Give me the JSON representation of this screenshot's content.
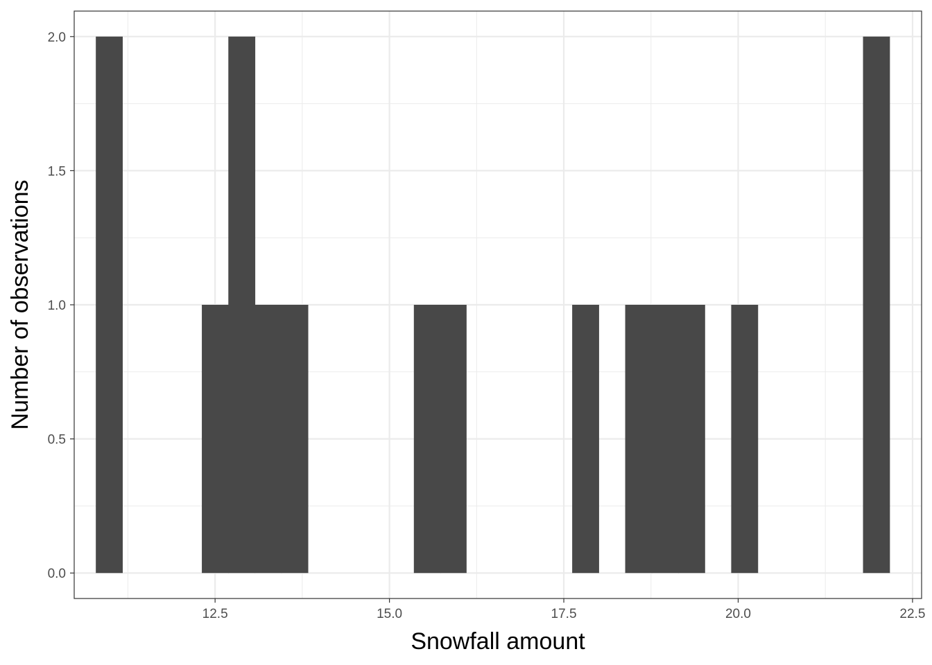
{
  "chart_data": {
    "type": "bar",
    "subtype": "histogram",
    "title": "",
    "xlabel": "Snowfall amount",
    "ylabel": "Number of observations",
    "xlim": [
      10.48,
      22.63
    ],
    "ylim": [
      -0.095,
      2.095
    ],
    "x_ticks": [
      12.5,
      15.0,
      17.5,
      20.0,
      22.5
    ],
    "x_tick_labels": [
      "12.5",
      "15.0",
      "17.5",
      "20.0",
      "22.5"
    ],
    "y_ticks": [
      0.0,
      0.5,
      1.0,
      1.5,
      2.0
    ],
    "y_tick_labels": [
      "0.0",
      "0.5",
      "1.0",
      "1.5",
      "2.0"
    ],
    "bin_width": 0.3793,
    "bars": [
      {
        "x0": 10.79,
        "x1": 11.17,
        "count": 2
      },
      {
        "x0": 12.31,
        "x1": 12.69,
        "count": 1
      },
      {
        "x0": 12.69,
        "x1": 13.07,
        "count": 2
      },
      {
        "x0": 13.07,
        "x1": 13.45,
        "count": 1
      },
      {
        "x0": 13.45,
        "x1": 13.83,
        "count": 1
      },
      {
        "x0": 15.35,
        "x1": 15.73,
        "count": 1
      },
      {
        "x0": 15.73,
        "x1": 16.1,
        "count": 1
      },
      {
        "x0": 17.62,
        "x1": 18.0,
        "count": 1
      },
      {
        "x0": 18.38,
        "x1": 18.76,
        "count": 1
      },
      {
        "x0": 18.76,
        "x1": 19.14,
        "count": 1
      },
      {
        "x0": 19.14,
        "x1": 19.52,
        "count": 1
      },
      {
        "x0": 19.9,
        "x1": 20.28,
        "count": 1
      },
      {
        "x0": 21.79,
        "x1": 22.17,
        "count": 2
      }
    ],
    "grid": true,
    "legend": "none",
    "bar_color": "#484848",
    "grid_major_color": "#ebebeb",
    "grid_minor_color": "#ebebeb",
    "panel_border_color": "#333333"
  }
}
